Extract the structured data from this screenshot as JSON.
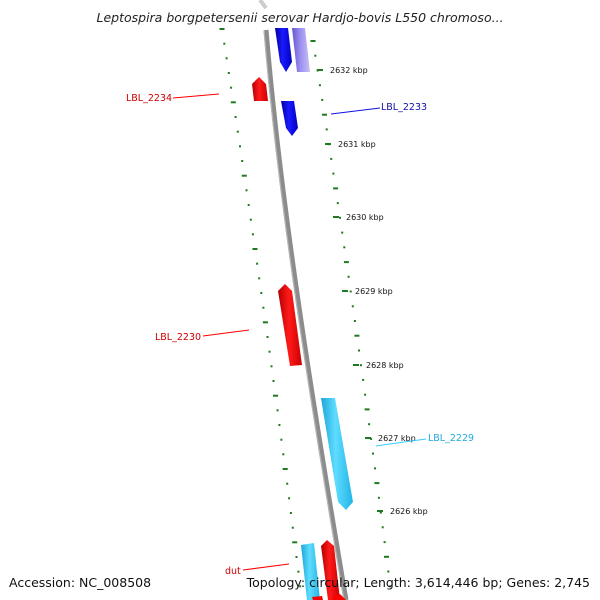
{
  "title": "Leptospira borgpetersenii serovar Hardjo-bovis L550 chromoso...",
  "footer": {
    "accession": "Accession: NC_008508",
    "summary": "Topology: circular; Length: 3,614,446 bp; Genes: 2,745"
  },
  "colors": {
    "backbone": "#8c8c8c",
    "tick": "#1f7a1f",
    "forward_red": "#ff0000",
    "reverse_blue": "#1010dd",
    "light_blue": "#33ccff",
    "lavender": "#8877dd"
  },
  "ticks": [
    {
      "label": "2632 kbp"
    },
    {
      "label": "2631 kbp"
    },
    {
      "label": "2630 kbp"
    },
    {
      "label": "2629 kbp"
    },
    {
      "label": "2628 kbp"
    },
    {
      "label": "2627 kbp"
    },
    {
      "label": "2626 kbp"
    }
  ],
  "genes": [
    {
      "label": "LBL_2234",
      "color": "#ff0000"
    },
    {
      "label": "LBL_2233",
      "color": "#1010dd"
    },
    {
      "label": "LBL_2230",
      "color": "#ff0000"
    },
    {
      "label": "LBL_2229",
      "color": "#33ccff"
    },
    {
      "label": "dut",
      "color": "#ff0000"
    }
  ]
}
